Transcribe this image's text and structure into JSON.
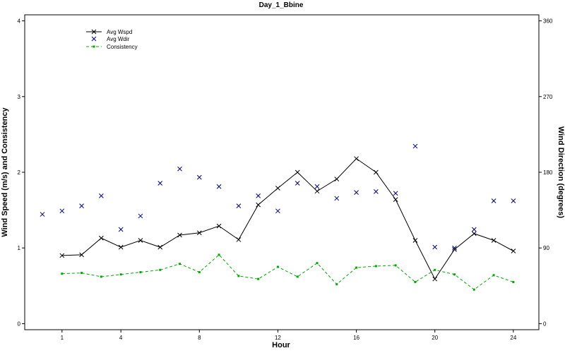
{
  "chart_data": {
    "type": "line",
    "title": "Day_1_Bbine",
    "xlabel": "Hour",
    "ylabel": "Wind Speed (m/s) and Consistency",
    "y2label": "Wind Direction (degrees)",
    "xlim": [
      -0.9,
      25.3
    ],
    "ylim": [
      -0.08,
      4.08
    ],
    "y2lim": [
      -7.2,
      367.2
    ],
    "xticks": [
      1,
      4,
      8,
      12,
      16,
      20,
      24
    ],
    "yticks": [
      0,
      1,
      2,
      3,
      4
    ],
    "y2ticks": [
      0,
      90,
      180,
      270,
      360
    ],
    "legend_position": "top-left",
    "series": [
      {
        "name": "Avg Wspd",
        "axis": "left",
        "style": "solid-line-x-markers",
        "color": "#000000",
        "x": [
          1,
          2,
          3,
          4,
          5,
          6,
          7,
          8,
          9,
          10,
          11,
          12,
          13,
          14,
          15,
          16,
          17,
          18,
          19,
          20,
          21,
          22,
          23,
          24
        ],
        "values": [
          0.9,
          0.91,
          1.13,
          1.01,
          1.1,
          1.01,
          1.17,
          1.2,
          1.29,
          1.11,
          1.57,
          1.79,
          2.0,
          1.75,
          1.91,
          2.18,
          2.0,
          1.64,
          1.1,
          0.59,
          0.98,
          1.19,
          1.1,
          0.96
        ]
      },
      {
        "name": "Avg Wdir",
        "axis": "right",
        "style": "x-markers",
        "color": "#00008b",
        "x": [
          0,
          1,
          2,
          3,
          4,
          5,
          6,
          7,
          8,
          9,
          10,
          11,
          12,
          13,
          14,
          15,
          16,
          17,
          18,
          19,
          20,
          21,
          22,
          23,
          24
        ],
        "values": [
          130,
          134,
          140,
          152,
          112,
          128,
          167,
          184,
          174,
          163,
          140,
          152,
          134,
          167,
          163,
          149,
          156,
          157,
          155,
          211,
          91,
          90,
          112,
          146,
          146
        ]
      },
      {
        "name": "Consistency",
        "axis": "left",
        "style": "dashed-line-square-markers",
        "color": "#00aa00",
        "x": [
          1,
          2,
          3,
          4,
          5,
          6,
          7,
          8,
          9,
          10,
          11,
          12,
          13,
          14,
          15,
          16,
          17,
          18,
          19,
          20,
          21,
          22,
          23,
          24
        ],
        "values": [
          0.66,
          0.67,
          0.62,
          0.65,
          0.68,
          0.71,
          0.79,
          0.68,
          0.91,
          0.63,
          0.59,
          0.75,
          0.62,
          0.8,
          0.52,
          0.74,
          0.76,
          0.77,
          0.55,
          0.71,
          0.65,
          0.45,
          0.64,
          0.55
        ]
      }
    ]
  }
}
